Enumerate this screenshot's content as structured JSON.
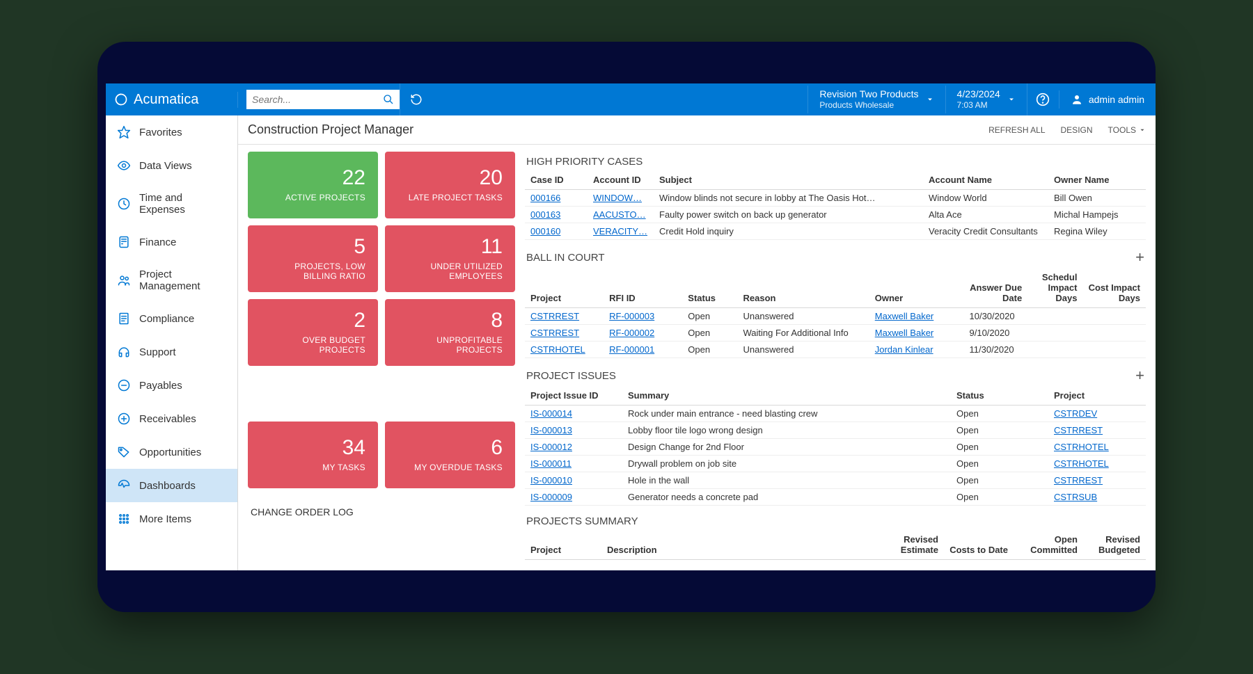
{
  "colors": {
    "page_bg": "#203625",
    "frame_bg": "#050a36",
    "topbar_bg": "#0078d4",
    "link": "#0066cc",
    "kpi_green": "#5cb85c",
    "kpi_red": "#e15361",
    "sidebar_active_bg": "#cfe5f7",
    "text": "#333333",
    "border": "#d8d8d8"
  },
  "topbar": {
    "product": "Acumatica",
    "search_placeholder": "Search...",
    "tenant_name": "Revision Two Products",
    "tenant_sub": "Products Wholesale",
    "date": "4/23/2024",
    "time": "7:03 AM",
    "user": "admin admin"
  },
  "sidebar": {
    "items": [
      {
        "label": "Favorites",
        "icon": "star",
        "active": false
      },
      {
        "label": "Data Views",
        "icon": "eye",
        "active": false
      },
      {
        "label": "Time and Expenses",
        "icon": "clock",
        "active": false
      },
      {
        "label": "Finance",
        "icon": "calc",
        "active": false
      },
      {
        "label": "Project Management",
        "icon": "people",
        "active": false
      },
      {
        "label": "Compliance",
        "icon": "doc",
        "active": false
      },
      {
        "label": "Support",
        "icon": "headset",
        "active": false
      },
      {
        "label": "Payables",
        "icon": "minus-circle",
        "active": false
      },
      {
        "label": "Receivables",
        "icon": "plus-circle",
        "active": false
      },
      {
        "label": "Opportunities",
        "icon": "tag",
        "active": false
      },
      {
        "label": "Dashboards",
        "icon": "gauge",
        "active": true
      },
      {
        "label": "More Items",
        "icon": "grid",
        "active": false
      }
    ]
  },
  "page": {
    "title": "Construction Project Manager",
    "actions": {
      "refresh": "REFRESH ALL",
      "design": "DESIGN",
      "tools": "TOOLS"
    }
  },
  "kpis": [
    [
      {
        "value": "22",
        "label": "ACTIVE PROJECTS",
        "color": "green"
      },
      {
        "value": "20",
        "label": "LATE PROJECT TASKS",
        "color": "red"
      }
    ],
    [
      {
        "value": "5",
        "label": "PROJECTS, LOW BILLING RATIO",
        "color": "red"
      },
      {
        "value": "11",
        "label": "UNDER UTILIZED EMPLOYEES",
        "color": "red"
      }
    ],
    [
      {
        "value": "2",
        "label": "OVER BUDGET PROJECTS",
        "color": "red"
      },
      {
        "value": "8",
        "label": "UNPROFITABLE PROJECTS",
        "color": "red"
      }
    ],
    [
      {
        "value": "34",
        "label": "MY TASKS",
        "color": "red"
      },
      {
        "value": "6",
        "label": "MY OVERDUE TASKS",
        "color": "red"
      }
    ]
  ],
  "change_order_label": "CHANGE ORDER LOG",
  "high_priority": {
    "title": "HIGH PRIORITY CASES",
    "columns": [
      "Case ID",
      "Account ID",
      "Subject",
      "Account Name",
      "Owner Name"
    ],
    "rows": [
      {
        "case_id": "000166",
        "account_id": "WINDOW…",
        "subject": "Window blinds not secure in lobby at The Oasis Hot…",
        "account_name": "Window World",
        "owner": "Bill Owen"
      },
      {
        "case_id": "000163",
        "account_id": "AACUSTO…",
        "subject": "Faulty power switch on back up generator",
        "account_name": "Alta Ace",
        "owner": "Michal Hampejs"
      },
      {
        "case_id": "000160",
        "account_id": "VERACITY…",
        "subject": "Credit Hold inquiry",
        "account_name": "Veracity Credit Consultants",
        "owner": "Regina Wiley"
      }
    ]
  },
  "ball_in_court": {
    "title": "BALL IN COURT",
    "columns": [
      "Project",
      "RFI ID",
      "Status",
      "Reason",
      "Owner",
      "Answer Due Date",
      "Schedul Impact Days",
      "Cost Impact Days"
    ],
    "rows": [
      {
        "project": "CSTRREST",
        "rfi": "RF-000003",
        "status": "Open",
        "reason": "Unanswered",
        "owner": "Maxwell Baker",
        "due": "10/30/2020",
        "sched": "",
        "cost": ""
      },
      {
        "project": "CSTRREST",
        "rfi": "RF-000002",
        "status": "Open",
        "reason": "Waiting For Additional Info",
        "owner": "Maxwell Baker",
        "due": "9/10/2020",
        "sched": "",
        "cost": ""
      },
      {
        "project": "CSTRHOTEL",
        "rfi": "RF-000001",
        "status": "Open",
        "reason": "Unanswered",
        "owner": "Jordan Kinlear",
        "due": "11/30/2020",
        "sched": "",
        "cost": ""
      }
    ]
  },
  "project_issues": {
    "title": "PROJECT ISSUES",
    "columns": [
      "Project Issue ID",
      "Summary",
      "Status",
      "Project"
    ],
    "rows": [
      {
        "id": "IS-000014",
        "summary": "Rock under main entrance - need blasting crew",
        "status": "Open",
        "project": "CSTRDEV"
      },
      {
        "id": "IS-000013",
        "summary": "Lobby floor tile logo wrong design",
        "status": "Open",
        "project": "CSTRREST"
      },
      {
        "id": "IS-000012",
        "summary": "Design Change for 2nd Floor",
        "status": "Open",
        "project": "CSTRHOTEL"
      },
      {
        "id": "IS-000011",
        "summary": "Drywall problem on job site",
        "status": "Open",
        "project": "CSTRHOTEL"
      },
      {
        "id": "IS-000010",
        "summary": "Hole in the wall",
        "status": "Open",
        "project": "CSTRREST"
      },
      {
        "id": "IS-000009",
        "summary": "Generator needs a concrete pad",
        "status": "Open",
        "project": "CSTRSUB"
      }
    ]
  },
  "projects_summary": {
    "title": "PROJECTS SUMMARY",
    "columns": [
      "Project",
      "Description",
      "Revised Estimate",
      "Costs to Date",
      "Open Committed",
      "Revised Budgeted"
    ]
  }
}
